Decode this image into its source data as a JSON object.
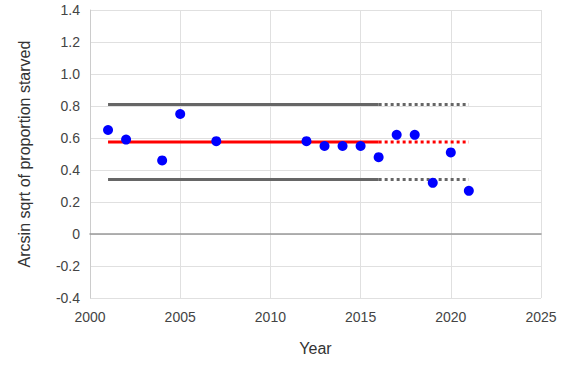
{
  "chart_data": {
    "type": "scatter",
    "x_label": "Year",
    "y_label": "Arcsin sqrt of proportion starved",
    "xlim": [
      2000,
      2025
    ],
    "xticks": [
      2000,
      2005,
      2010,
      2015,
      2020,
      2025
    ],
    "ylim": [
      -0.4,
      1.4
    ],
    "yticks": [
      -0.4,
      -0.2,
      0,
      0.2,
      0.4,
      0.6,
      0.8,
      {
        "value": 1,
        "label": "1.0"
      },
      1.2,
      1.4
    ],
    "grid": true,
    "series": [
      {
        "type": "scatter",
        "color": "#0000ff",
        "marker": "circle",
        "x": [
          2001,
          2002,
          2004,
          2005,
          2007,
          2012,
          2013,
          2014,
          2015,
          2016,
          2017,
          2018,
          2019,
          2020,
          2021
        ],
        "values": [
          0.65,
          0.59,
          0.46,
          0.75,
          0.58,
          0.58,
          0.55,
          0.55,
          0.55,
          0.48,
          0.62,
          0.62,
          0.32,
          0.51,
          0.27
        ]
      },
      {
        "type": "line",
        "color": "#666666",
        "line_style": "solid",
        "x": [
          2001,
          2016
        ],
        "values": [
          0.81,
          0.81
        ]
      },
      {
        "type": "line",
        "color": "#666666",
        "line_style": "dotted",
        "x": [
          2016,
          2021
        ],
        "values": [
          0.81,
          0.81
        ]
      },
      {
        "type": "line",
        "color": "#ff0000",
        "line_style": "solid",
        "x": [
          2001,
          2016
        ],
        "values": [
          0.575,
          0.575
        ]
      },
      {
        "type": "line",
        "color": "#ff0000",
        "line_style": "dotted",
        "x": [
          2016,
          2021
        ],
        "values": [
          0.575,
          0.575
        ]
      },
      {
        "type": "line",
        "color": "#666666",
        "line_style": "solid",
        "x": [
          2001,
          2016
        ],
        "values": [
          0.34,
          0.34
        ]
      },
      {
        "type": "line",
        "color": "#666666",
        "line_style": "dotted",
        "x": [
          2016,
          2021
        ],
        "values": [
          0.34,
          0.34
        ]
      }
    ]
  }
}
